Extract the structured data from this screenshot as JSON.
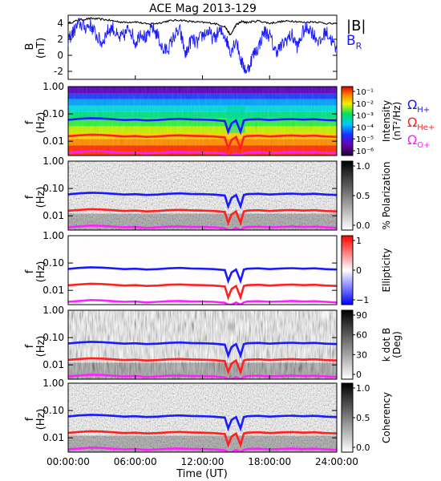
{
  "title": "ACE Mag 2013-129",
  "xaxis": {
    "label": "Time (UT)",
    "ticks": [
      "00:00:00",
      "06:00:00",
      "12:00:00",
      "18:00:00",
      "24:00:00"
    ],
    "range_hours": [
      0,
      24
    ]
  },
  "freq_axis": {
    "label_line1": "f",
    "label_line2": "(Hz)",
    "ticks": [
      "1.00",
      "0.10",
      "0.01"
    ],
    "range_hz": [
      0.003,
      1.0
    ],
    "scale": "log"
  },
  "line_labels": {
    "h_plus": {
      "symbol": "Ω",
      "sub": "H+",
      "color": "#1a1aff"
    },
    "he_plus": {
      "symbol": "Ω",
      "sub": "He+",
      "color": "#ff2020"
    },
    "o_plus": {
      "symbol": "Ω",
      "sub": "O+",
      "color": "#ff20ff"
    }
  },
  "colors": {
    "total_field": "#000000",
    "radial_field": "#1a1aff",
    "h_plus_line": "#1a1aff",
    "he_plus_line": "#ff2020",
    "o_plus_line": "#ff20ff"
  },
  "chart_data": [
    {
      "type": "line",
      "ylabel_line1": "B",
      "ylabel_line2": "(nT)",
      "ylim": [
        -3,
        5
      ],
      "yticks": [
        "4",
        "2",
        "0",
        "-2"
      ],
      "legend": [
        {
          "name": "|B|",
          "color": "#000000"
        },
        {
          "name": "B",
          "sub": "R",
          "color": "#1a1aff"
        }
      ],
      "series": [
        {
          "name": "|B|",
          "x_hours": [
            0,
            1,
            2,
            3,
            4,
            5,
            6,
            7,
            8,
            9,
            10,
            11,
            12,
            13,
            14,
            14.5,
            15,
            15.5,
            16,
            17,
            18,
            19,
            20,
            21,
            22,
            23,
            24
          ],
          "values": [
            4.0,
            4.4,
            4.6,
            4.5,
            4.3,
            4.1,
            4.2,
            3.9,
            4.0,
            4.3,
            4.4,
            4.2,
            4.1,
            4.0,
            3.6,
            2.5,
            3.8,
            4.2,
            4.1,
            4.3,
            4.0,
            4.2,
            4.3,
            4.1,
            4.2,
            4.0,
            3.9
          ]
        },
        {
          "name": "B_R",
          "x_hours": [
            0,
            0.5,
            1,
            1.5,
            2,
            2.5,
            3,
            3.5,
            4,
            4.5,
            5,
            5.5,
            6,
            6.5,
            7,
            7.5,
            8,
            8.5,
            9,
            9.5,
            10,
            10.5,
            11,
            11.5,
            12,
            12.5,
            13,
            13.5,
            14,
            14.5,
            15,
            15.5,
            16,
            16.5,
            17,
            17.5,
            18,
            18.5,
            19,
            19.5,
            20,
            20.5,
            21,
            21.5,
            22,
            22.5,
            23,
            23.5,
            24
          ],
          "values": [
            2.0,
            3.0,
            4.0,
            3.5,
            3.8,
            2.5,
            1.5,
            3.0,
            3.5,
            2.0,
            2.5,
            3.5,
            1.5,
            3.0,
            2.0,
            3.5,
            2.5,
            0.5,
            1.0,
            2.5,
            3.0,
            0.0,
            2.0,
            1.5,
            2.5,
            3.0,
            2.0,
            3.0,
            2.5,
            0.5,
            2.0,
            -1.0,
            -2.0,
            0.0,
            1.0,
            3.0,
            2.5,
            0.5,
            1.0,
            2.0,
            2.5,
            1.0,
            3.0,
            3.5,
            2.5,
            1.5,
            3.0,
            2.0,
            0.5
          ]
        }
      ]
    },
    {
      "type": "heatmap",
      "colorbar_label": "Intensity",
      "colorbar_label2": "(nT²/Hz)",
      "colorbar_scale": "log",
      "colorbar_ticks": [
        "10⁻¹",
        "10⁻²",
        "10⁻³",
        "10⁻⁴",
        "10⁻⁵",
        "10⁻⁶"
      ],
      "colorbar_range": [
        1e-06,
        0.2
      ]
    },
    {
      "type": "heatmap",
      "colorbar_label": "% Polarization",
      "colorbar_ticks": [
        "1.0",
        "0.5",
        "0.0"
      ],
      "colorbar_range": [
        0,
        1
      ]
    },
    {
      "type": "heatmap",
      "colorbar_label": "Ellipticity",
      "colorbar_ticks": [
        "1",
        "0",
        "−1"
      ],
      "colorbar_range": [
        -1,
        1
      ]
    },
    {
      "type": "heatmap",
      "colorbar_label": "k dot B",
      "colorbar_label2": "(Deg)",
      "colorbar_ticks": [
        "90",
        "60",
        "30",
        "0"
      ],
      "colorbar_range": [
        0,
        90
      ]
    },
    {
      "type": "heatmap",
      "colorbar_label": "Coherency",
      "colorbar_ticks": [
        "1.0",
        "0.5",
        "0.0"
      ],
      "colorbar_range": [
        0,
        1
      ]
    }
  ],
  "gyrofrequency_lines": {
    "x_hours": [
      0,
      1,
      2,
      3,
      4,
      5,
      6,
      7,
      8,
      9,
      10,
      11,
      12,
      13,
      14,
      14.3,
      14.6,
      15,
      15.4,
      15.7,
      16,
      17,
      18,
      19,
      20,
      21,
      22,
      23,
      24
    ],
    "h_plus_hz": [
      0.061,
      0.066,
      0.07,
      0.068,
      0.064,
      0.06,
      0.062,
      0.058,
      0.06,
      0.064,
      0.066,
      0.063,
      0.062,
      0.06,
      0.055,
      0.022,
      0.045,
      0.058,
      0.022,
      0.058,
      0.062,
      0.064,
      0.06,
      0.063,
      0.065,
      0.062,
      0.064,
      0.06,
      0.058
    ],
    "he_plus_hz": [
      0.0153,
      0.0165,
      0.0175,
      0.017,
      0.016,
      0.015,
      0.0155,
      0.0145,
      0.015,
      0.016,
      0.0165,
      0.0158,
      0.0155,
      0.015,
      0.0138,
      0.0055,
      0.0112,
      0.0145,
      0.0055,
      0.0145,
      0.0155,
      0.016,
      0.015,
      0.0158,
      0.0163,
      0.0155,
      0.016,
      0.015,
      0.0145
    ],
    "o_plus_hz": [
      0.0038,
      0.0041,
      0.0044,
      0.0043,
      0.004,
      0.0038,
      0.0039,
      0.0036,
      0.0038,
      0.004,
      0.0041,
      0.0039,
      0.0039,
      0.0038,
      0.0035,
      0.003,
      0.003,
      0.0036,
      0.003,
      0.0036,
      0.0039,
      0.004,
      0.0038,
      0.0039,
      0.0041,
      0.0039,
      0.004,
      0.0038,
      0.0036
    ]
  }
}
